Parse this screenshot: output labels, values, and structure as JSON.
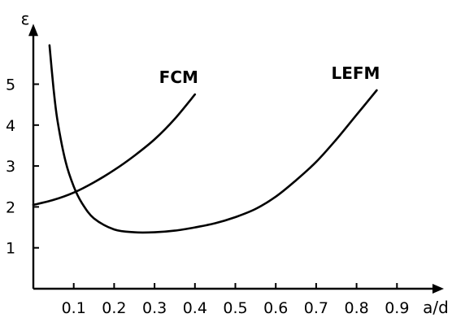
{
  "chart_data": {
    "type": "line",
    "title": "",
    "xlabel": "a/d",
    "ylabel": "ε",
    "xlim": [
      0,
      1.0
    ],
    "ylim": [
      0,
      6.0
    ],
    "x_ticks": [
      0.1,
      0.2,
      0.3,
      0.4,
      0.5,
      0.6,
      0.7,
      0.8,
      0.9
    ],
    "x_tick_labels": [
      "0.1",
      "0.2",
      "0.3",
      "0.4",
      "0.5",
      "0.6",
      "0.7",
      "0.8",
      "0.9"
    ],
    "y_ticks": [
      1,
      2,
      3,
      4,
      5
    ],
    "y_tick_labels": [
      "1",
      "2",
      "3",
      "4",
      "5"
    ],
    "grid": false,
    "series": [
      {
        "name": "FCM",
        "x": [
          0.0,
          0.05,
          0.1,
          0.15,
          0.2,
          0.25,
          0.3,
          0.35,
          0.4
        ],
        "y": [
          2.05,
          2.17,
          2.35,
          2.6,
          2.9,
          3.25,
          3.65,
          4.15,
          4.75
        ]
      },
      {
        "name": "LEFM",
        "x": [
          0.04,
          0.05,
          0.06,
          0.08,
          0.1,
          0.12,
          0.15,
          0.2,
          0.25,
          0.3,
          0.35,
          0.4,
          0.45,
          0.5,
          0.55,
          0.6,
          0.65,
          0.7,
          0.75,
          0.8,
          0.85
        ],
        "y": [
          5.95,
          4.9,
          4.1,
          3.1,
          2.5,
          2.1,
          1.72,
          1.45,
          1.38,
          1.38,
          1.42,
          1.5,
          1.6,
          1.75,
          1.95,
          2.25,
          2.65,
          3.1,
          3.65,
          4.25,
          4.85
        ]
      }
    ]
  }
}
